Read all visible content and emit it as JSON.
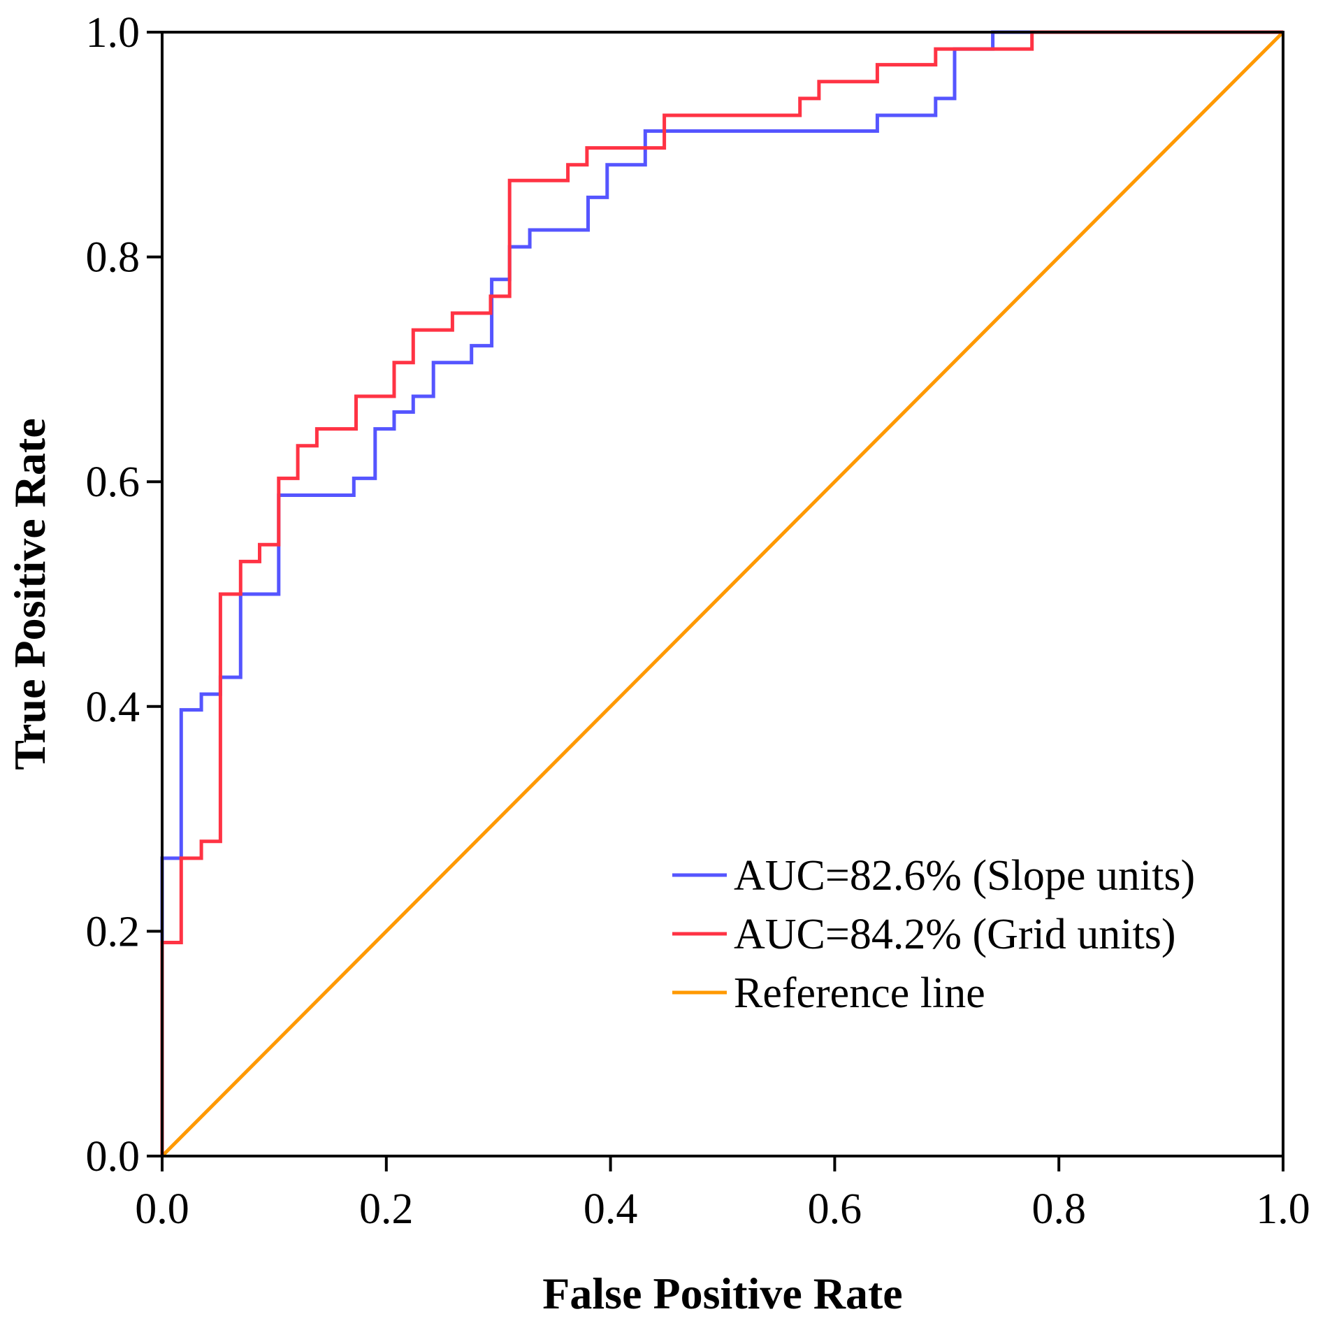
{
  "chart_data": {
    "type": "line",
    "xlabel": "False Positive Rate",
    "ylabel": "True Positive Rate",
    "xlim": [
      0,
      1
    ],
    "ylim": [
      0,
      1
    ],
    "x_ticks": [
      "0.0",
      "0.2",
      "0.4",
      "0.6",
      "0.8",
      "1.0"
    ],
    "y_ticks": [
      "0.0",
      "0.2",
      "0.4",
      "0.6",
      "0.8",
      "1.0"
    ],
    "grid": false,
    "legend_position": "bottom-right",
    "series": [
      {
        "name": "AUC=82.6% (Slope units)",
        "color": "#5555ff",
        "step": true,
        "points": [
          [
            0,
            0
          ],
          [
            0,
            0.265
          ],
          [
            0.017,
            0.265
          ],
          [
            0.017,
            0.397
          ],
          [
            0.035,
            0.397
          ],
          [
            0.035,
            0.411
          ],
          [
            0.052,
            0.411
          ],
          [
            0.052,
            0.426
          ],
          [
            0.07,
            0.426
          ],
          [
            0.07,
            0.5
          ],
          [
            0.104,
            0.5
          ],
          [
            0.104,
            0.588
          ],
          [
            0.171,
            0.588
          ],
          [
            0.171,
            0.603
          ],
          [
            0.19,
            0.603
          ],
          [
            0.19,
            0.647
          ],
          [
            0.207,
            0.647
          ],
          [
            0.207,
            0.662
          ],
          [
            0.224,
            0.662
          ],
          [
            0.224,
            0.676
          ],
          [
            0.242,
            0.676
          ],
          [
            0.242,
            0.706
          ],
          [
            0.276,
            0.706
          ],
          [
            0.276,
            0.721
          ],
          [
            0.294,
            0.721
          ],
          [
            0.294,
            0.78
          ],
          [
            0.31,
            0.78
          ],
          [
            0.31,
            0.809
          ],
          [
            0.328,
            0.809
          ],
          [
            0.328,
            0.824
          ],
          [
            0.38,
            0.824
          ],
          [
            0.38,
            0.853
          ],
          [
            0.397,
            0.853
          ],
          [
            0.397,
            0.882
          ],
          [
            0.431,
            0.882
          ],
          [
            0.431,
            0.912
          ],
          [
            0.638,
            0.912
          ],
          [
            0.638,
            0.926
          ],
          [
            0.69,
            0.926
          ],
          [
            0.69,
            0.941
          ],
          [
            0.707,
            0.941
          ],
          [
            0.707,
            0.985
          ],
          [
            0.741,
            0.985
          ],
          [
            0.741,
            1.0
          ],
          [
            1.0,
            1.0
          ]
        ]
      },
      {
        "name": "AUC=84.2% (Grid units)",
        "color": "#ff3344",
        "step": true,
        "points": [
          [
            0,
            0
          ],
          [
            0,
            0.19
          ],
          [
            0.017,
            0.19
          ],
          [
            0.017,
            0.265
          ],
          [
            0.035,
            0.265
          ],
          [
            0.035,
            0.28
          ],
          [
            0.052,
            0.28
          ],
          [
            0.052,
            0.5
          ],
          [
            0.07,
            0.5
          ],
          [
            0.07,
            0.529
          ],
          [
            0.087,
            0.529
          ],
          [
            0.087,
            0.544
          ],
          [
            0.104,
            0.544
          ],
          [
            0.104,
            0.603
          ],
          [
            0.121,
            0.603
          ],
          [
            0.121,
            0.632
          ],
          [
            0.138,
            0.632
          ],
          [
            0.138,
            0.647
          ],
          [
            0.173,
            0.647
          ],
          [
            0.173,
            0.676
          ],
          [
            0.207,
            0.676
          ],
          [
            0.207,
            0.706
          ],
          [
            0.224,
            0.706
          ],
          [
            0.224,
            0.735
          ],
          [
            0.259,
            0.735
          ],
          [
            0.259,
            0.75
          ],
          [
            0.293,
            0.75
          ],
          [
            0.293,
            0.765
          ],
          [
            0.31,
            0.765
          ],
          [
            0.31,
            0.868
          ],
          [
            0.362,
            0.868
          ],
          [
            0.362,
            0.882
          ],
          [
            0.379,
            0.882
          ],
          [
            0.379,
            0.897
          ],
          [
            0.431,
            0.897
          ],
          [
            0.448,
            0.897
          ],
          [
            0.448,
            0.926
          ],
          [
            0.569,
            0.926
          ],
          [
            0.569,
            0.941
          ],
          [
            0.586,
            0.941
          ],
          [
            0.586,
            0.956
          ],
          [
            0.638,
            0.956
          ],
          [
            0.638,
            0.971
          ],
          [
            0.69,
            0.971
          ],
          [
            0.69,
            0.985
          ],
          [
            0.776,
            0.985
          ],
          [
            0.776,
            1.0
          ],
          [
            1.0,
            1.0
          ]
        ]
      },
      {
        "name": "Reference line",
        "color": "#ff9900",
        "step": false,
        "points": [
          [
            0,
            0
          ],
          [
            1,
            1
          ]
        ]
      }
    ]
  }
}
